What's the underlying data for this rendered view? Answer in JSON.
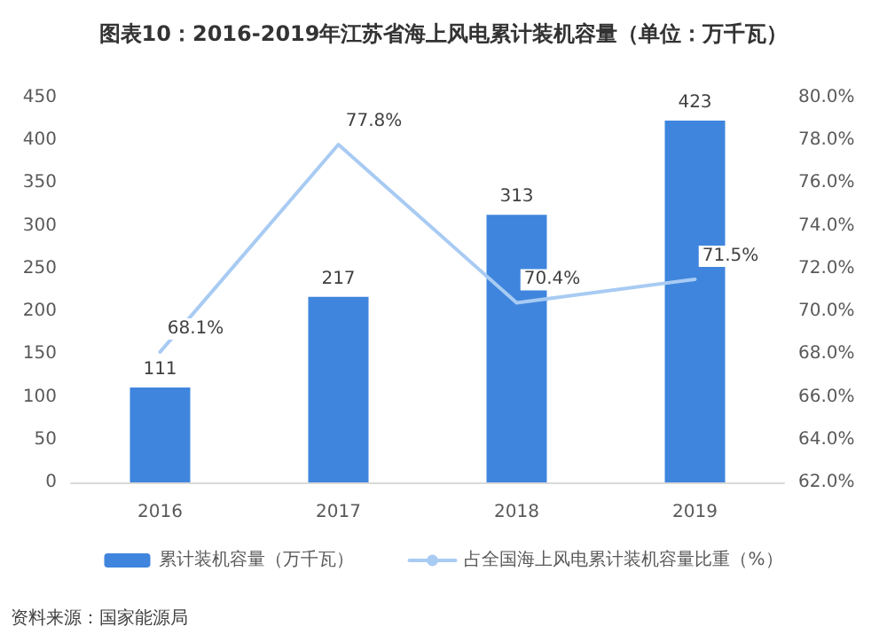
{
  "chart_data": {
    "type": "bar",
    "title": "图表10：2016-2019年江苏省海上风电累计装机容量（单位：万千瓦）",
    "categories": [
      "2016",
      "2017",
      "2018",
      "2019"
    ],
    "series": [
      {
        "name": "累计装机容量（万千瓦）",
        "color": "#3f85dd",
        "values": [
          111,
          217,
          313,
          423
        ],
        "value_labels": [
          "111",
          "217",
          "313",
          "423"
        ]
      },
      {
        "name": "占全国海上风电累计装机容量比重（%）",
        "type": "line",
        "axis": "y2",
        "color": "#a8cbf3",
        "values": [
          68.1,
          77.8,
          70.4,
          71.5
        ],
        "value_labels": [
          "68.1%",
          "77.8%",
          "70.4%",
          "71.5%"
        ]
      }
    ],
    "ylim": [
      0,
      450
    ],
    "yticks": [
      0,
      50,
      100,
      150,
      200,
      250,
      300,
      350,
      400,
      450
    ],
    "y2lim": [
      62,
      80
    ],
    "y2ticks": [
      {
        "value": 62,
        "label": "62.0%"
      },
      {
        "value": 64,
        "label": "64.0%"
      },
      {
        "value": 66,
        "label": "66.0%"
      },
      {
        "value": 68,
        "label": "68.0%"
      },
      {
        "value": 70,
        "label": "70.0%"
      },
      {
        "value": 72,
        "label": "72.0%"
      },
      {
        "value": 74,
        "label": "74.0%"
      },
      {
        "value": 76,
        "label": "76.0%"
      },
      {
        "value": 78,
        "label": "78.0%"
      },
      {
        "value": 80,
        "label": "80.0%"
      }
    ],
    "legend": "bottom",
    "marker": "none",
    "annotations": [
      "资料来源：国家能源局"
    ]
  }
}
